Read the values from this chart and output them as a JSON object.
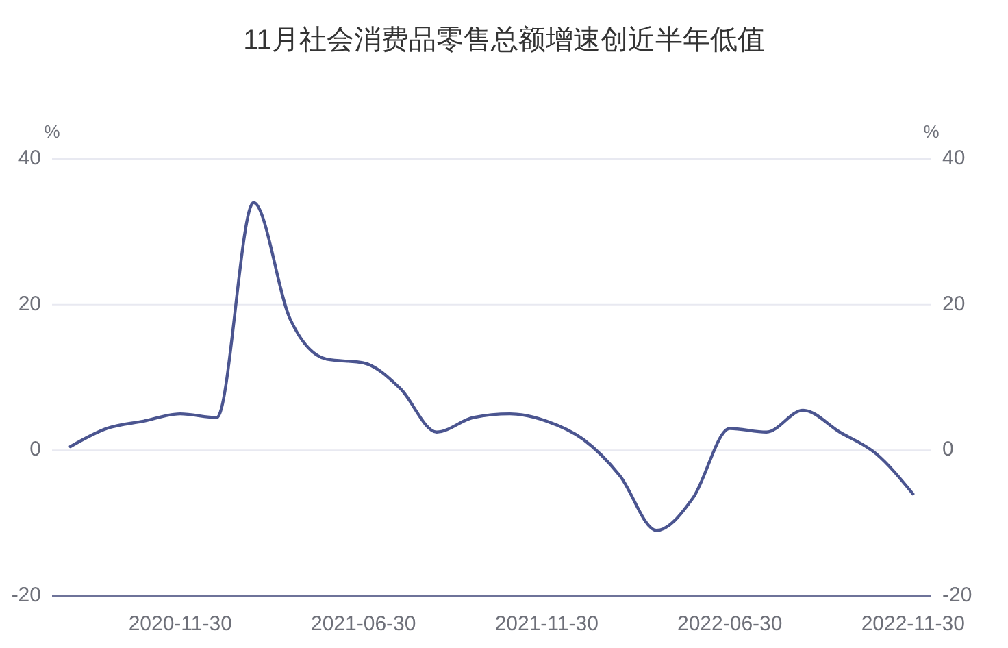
{
  "chart_data": {
    "type": "line",
    "title": "11月社会消费品零售总额增速创近半年低值",
    "ylabel": "%",
    "y2label": "%",
    "categories": [
      null,
      null,
      null,
      "2020-11-30",
      null,
      null,
      null,
      null,
      "2021-06-30",
      null,
      null,
      null,
      null,
      "2021-11-30",
      null,
      null,
      null,
      null,
      "2022-06-30",
      null,
      null,
      null,
      null,
      "2022-11-30"
    ],
    "series": [
      {
        "color": "#4b5590",
        "values": [
          0.5,
          3,
          4,
          5,
          4.5,
          34,
          18,
          12.5,
          12,
          8.5,
          2.5,
          4.5,
          5,
          4,
          1.5,
          -3.5,
          -11,
          -6.5,
          3,
          2.5,
          5.5,
          2.5,
          -0.5,
          -6
        ]
      }
    ],
    "ylim": [
      -20,
      40
    ],
    "yticks": [
      -20,
      0,
      20,
      40
    ],
    "y2lim": [
      -20,
      40
    ],
    "y2ticks": [
      -20,
      0,
      20,
      40
    ],
    "grid": "y",
    "marker": "none",
    "line_style": "solid"
  }
}
